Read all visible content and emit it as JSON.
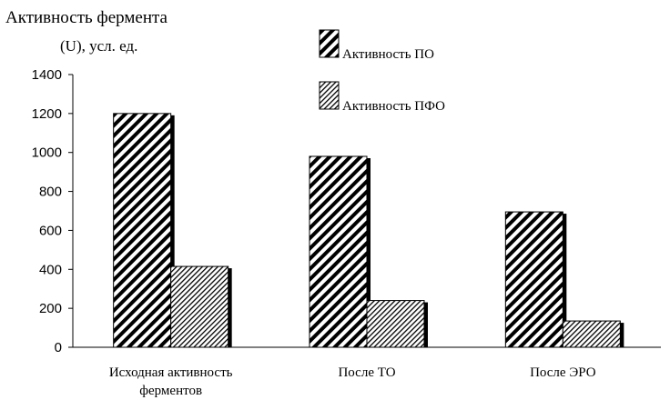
{
  "chart_data": {
    "type": "bar",
    "ylabel_line1": "Активность фермента",
    "ylabel_line2": "(U), усл. ед.",
    "categories": [
      [
        "Исходная активность",
        "ферментов"
      ],
      [
        "После ТО"
      ],
      [
        "После ЭРО"
      ]
    ],
    "series": [
      {
        "name": "Активность ПО",
        "values": [
          1200,
          980,
          695
        ],
        "pattern": "dense-hatch"
      },
      {
        "name": "Активность ПФО",
        "values": [
          415,
          240,
          135
        ],
        "pattern": "light-hatch"
      }
    ],
    "ylim": [
      0,
      1400
    ],
    "yticks": [
      0,
      200,
      400,
      600,
      800,
      1000,
      1200,
      1400
    ],
    "grid": false,
    "legend_position": "top-right"
  }
}
